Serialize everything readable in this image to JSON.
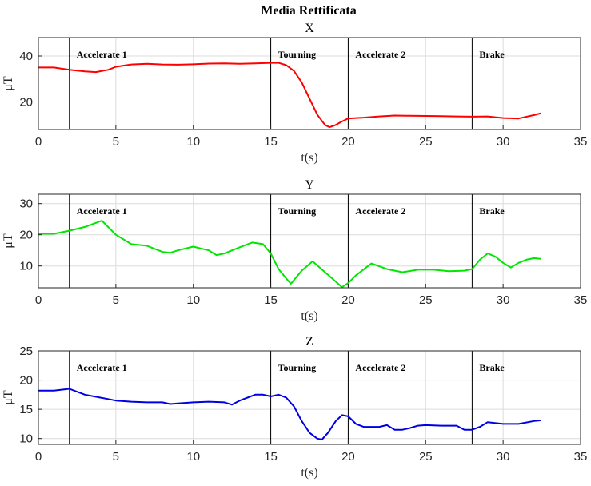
{
  "figure_title": "Media Rettificata",
  "colors": {
    "X": "#ff0000",
    "Y": "#00e600",
    "Z": "#0000e6"
  },
  "chart_data": [
    {
      "type": "line",
      "title": "X",
      "xlabel": "t(s)",
      "ylabel": "μT",
      "xlim": [
        0,
        35
      ],
      "ylim": [
        8,
        48
      ],
      "xticks": [
        0,
        5,
        10,
        15,
        20,
        25,
        30,
        35
      ],
      "yticks": [
        20,
        40
      ],
      "grid": true,
      "markers": [
        {
          "x": 2,
          "label": "Accelerate 1"
        },
        {
          "x": 15,
          "label": "Tourning"
        },
        {
          "x": 20,
          "label": "Accelerate 2"
        },
        {
          "x": 28,
          "label": "Brake"
        }
      ],
      "series": [
        {
          "color": "#ff0000",
          "x": [
            0,
            1,
            2,
            3,
            3.7,
            4.5,
            5,
            6,
            7,
            8,
            9,
            10,
            11,
            12,
            13,
            14,
            15,
            15.5,
            16,
            16.5,
            17,
            17.5,
            18,
            18.5,
            18.8,
            19.2,
            19.6,
            20,
            20.5,
            21,
            22,
            23,
            24,
            25,
            26,
            27,
            28,
            29,
            30,
            31,
            32,
            32.4
          ],
          "values": [
            35,
            35,
            34,
            33.3,
            33,
            34,
            35.3,
            36.3,
            36.6,
            36.3,
            36.2,
            36.4,
            36.7,
            36.8,
            36.6,
            36.8,
            37,
            37,
            36,
            33.5,
            28.5,
            21.5,
            14.5,
            10,
            9,
            10,
            11.5,
            12.8,
            13,
            13.2,
            13.7,
            14.1,
            14,
            13.9,
            13.8,
            13.7,
            13.6,
            13.7,
            13,
            12.8,
            14.3,
            15
          ]
        }
      ]
    },
    {
      "type": "line",
      "title": "Y",
      "xlabel": "t(s)",
      "ylabel": "μT",
      "xlim": [
        0,
        35
      ],
      "ylim": [
        3,
        33
      ],
      "xticks": [
        0,
        5,
        10,
        15,
        20,
        25,
        30,
        35
      ],
      "yticks": [
        10,
        20,
        30
      ],
      "grid": true,
      "markers": [
        {
          "x": 2,
          "label": "Accelerate 1"
        },
        {
          "x": 15,
          "label": "Tourning"
        },
        {
          "x": 20,
          "label": "Accelerate 2"
        },
        {
          "x": 28,
          "label": "Brake"
        }
      ],
      "series": [
        {
          "color": "#00e600",
          "x": [
            0,
            1,
            2,
            3,
            4.1,
            5,
            6,
            7,
            8,
            8.5,
            9,
            10,
            11,
            11.5,
            12,
            13,
            13.8,
            14.5,
            15,
            15.5,
            16,
            16.3,
            17,
            17.7,
            18.5,
            19.2,
            19.6,
            20,
            20.5,
            21.5,
            22.5,
            23.5,
            24.5,
            25.5,
            26.5,
            27.5,
            28,
            28.5,
            29,
            29.5,
            30,
            30.5,
            31,
            31.5,
            32,
            32.4
          ],
          "values": [
            20.3,
            20.3,
            21.3,
            22.5,
            24.5,
            20,
            17,
            16.5,
            14.5,
            14.2,
            15,
            16.2,
            15,
            13.5,
            14,
            16,
            17.5,
            17,
            14,
            9,
            6,
            4.3,
            8.5,
            11.5,
            8,
            5,
            3.2,
            4.5,
            7,
            10.8,
            9,
            8,
            8.8,
            8.8,
            8.3,
            8.5,
            9,
            12,
            14,
            13,
            11,
            9.5,
            11,
            12,
            12.5,
            12.3
          ]
        }
      ]
    },
    {
      "type": "line",
      "title": "Z",
      "xlabel": "t(s)",
      "ylabel": "μT",
      "xlim": [
        0,
        35
      ],
      "ylim": [
        9,
        25
      ],
      "xticks": [
        0,
        5,
        10,
        15,
        20,
        25,
        30,
        35
      ],
      "yticks": [
        10,
        15,
        20,
        25
      ],
      "grid": true,
      "markers": [
        {
          "x": 2,
          "label": "Accelerate 1"
        },
        {
          "x": 15,
          "label": "Tourning"
        },
        {
          "x": 20,
          "label": "Accelerate 2"
        },
        {
          "x": 28,
          "label": "Brake"
        }
      ],
      "series": [
        {
          "color": "#0000e6",
          "x": [
            0,
            1,
            2,
            3,
            4,
            5,
            6,
            7,
            8,
            8.5,
            9,
            10,
            11,
            12,
            12.5,
            13,
            14,
            14.5,
            15,
            15.5,
            16,
            16.5,
            17,
            17.5,
            18,
            18.3,
            18.7,
            19.2,
            19.6,
            20,
            20.5,
            21,
            22,
            22.5,
            23,
            23.5,
            24,
            24.5,
            25,
            26,
            27,
            27.5,
            28,
            28.5,
            29,
            30,
            31,
            32,
            32.4
          ],
          "values": [
            18.2,
            18.2,
            18.5,
            17.5,
            17,
            16.5,
            16.3,
            16.2,
            16.2,
            15.9,
            16,
            16.2,
            16.3,
            16.2,
            15.8,
            16.5,
            17.5,
            17.5,
            17.2,
            17.5,
            17,
            15.5,
            13,
            11,
            10,
            9.8,
            11,
            13,
            14,
            13.8,
            12.5,
            12,
            12,
            12.3,
            11.5,
            11.5,
            11.8,
            12.2,
            12.3,
            12.2,
            12.2,
            11.5,
            11.5,
            12,
            12.8,
            12.5,
            12.5,
            13,
            13.1
          ]
        }
      ]
    }
  ]
}
